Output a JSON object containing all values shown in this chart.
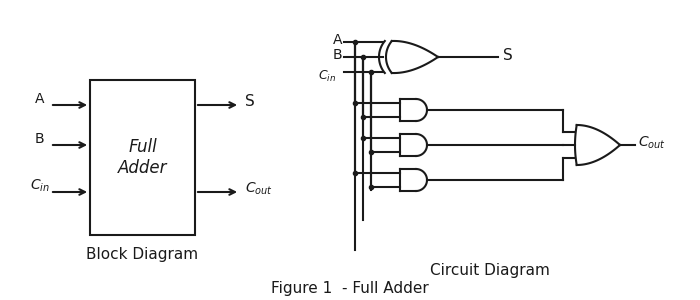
{
  "bg_color": "#ffffff",
  "line_color": "#1a1a1a",
  "text_color": "#1a1a1a",
  "title": "Figure 1  - Full Adder",
  "block_label": "Full\nAdder",
  "block_diagram_label": "Block Diagram",
  "circuit_diagram_label": "Circuit Diagram",
  "inputs": [
    "A",
    "B",
    "C"
  ],
  "outputs": [
    "S",
    "C_out"
  ]
}
